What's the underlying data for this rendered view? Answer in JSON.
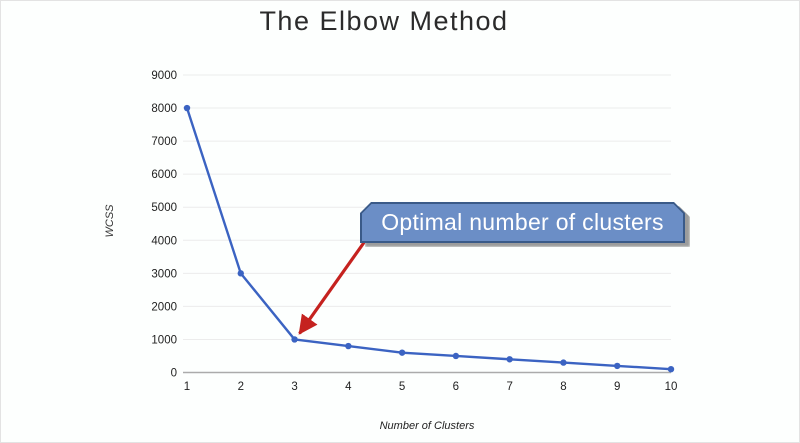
{
  "slide": {
    "title": "The Elbow Method"
  },
  "chart_data": {
    "type": "line",
    "title": "The Elbow Method",
    "xlabel": "Number of Clusters",
    "ylabel": "WCSS",
    "x": [
      1,
      2,
      3,
      4,
      5,
      6,
      7,
      8,
      9,
      10
    ],
    "xtick_labels": [
      "1",
      "2",
      "3",
      "4",
      "5",
      "6",
      "7",
      "8",
      "9",
      "10"
    ],
    "ytick_labels": [
      "0",
      "1000",
      "2000",
      "3000",
      "4000",
      "5000",
      "6000",
      "7000",
      "8000",
      "9000"
    ],
    "ylim": [
      0,
      9000
    ],
    "ytick_step": 1000,
    "grid": true,
    "legend": "none",
    "series": [
      {
        "name": "WCSS",
        "color": "#3b63c2",
        "values": [
          8000,
          3000,
          1000,
          800,
          600,
          500,
          400,
          300,
          200,
          100
        ]
      }
    ],
    "annotation": {
      "label": "Optimal number of clusters",
      "target_x": 3,
      "target_y": 1000,
      "arrow_color": "#c5221f",
      "box_fill": "#6b8ec6",
      "box_border": "#3a5a88",
      "box_text_color": "#ffffff"
    }
  },
  "colors": {
    "gridline": "#ececec",
    "axis_line": "#ababab",
    "tick_text": "#1f1f1f",
    "title_text": "#2b2b2b"
  }
}
